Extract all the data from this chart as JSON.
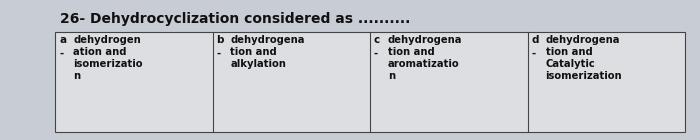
{
  "title": "26- Dehydrocyclization considered as ..........",
  "title_fontsize": 10,
  "table_options": [
    {
      "letter": "a",
      "bullet": "-",
      "text": "dehydrogen\nation and\nisomerizatio\nn"
    },
    {
      "letter": "b",
      "bullet": "-",
      "text": "dehydrogena\ntion and\nalkylation"
    },
    {
      "letter": "c",
      "bullet": "-",
      "text": "dehydrogena\ntion and\naromatizatio\nn"
    },
    {
      "letter": "d",
      "bullet": "-",
      "text": "dehydrogena\ntion and\nCatalytic\nisomerization"
    }
  ],
  "bg_color": "#c8ccd4",
  "cell_bg": "#dcdee2",
  "border_color": "#444444",
  "text_color": "#111111",
  "title_color": "#111111",
  "cell_text_fontsize": 7.2,
  "letter_fontsize": 7.5
}
